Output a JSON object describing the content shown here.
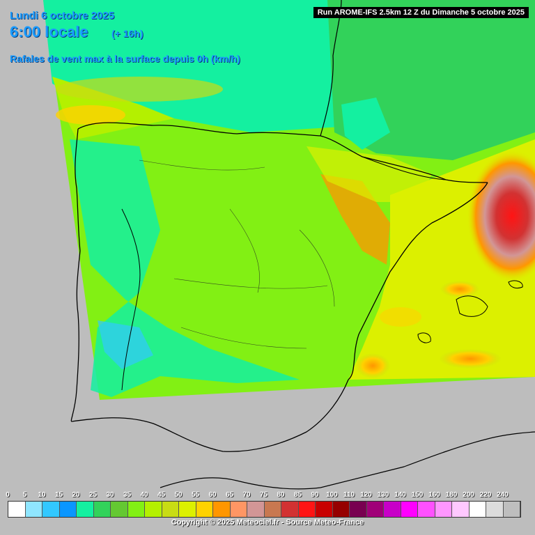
{
  "header": {
    "date": "Lundi 6 octobre 2025",
    "time": "6:00 locale",
    "lead": "(+ 16h)",
    "parameter": "Rafales de vent max à la surface depuis 0h (km/h)",
    "run": "Run AROME-IFS 2.5km 12 Z du Dimanche 5 octobre 2025"
  },
  "legend": {
    "labels": [
      "0",
      "5",
      "10",
      "15",
      "20",
      "25",
      "30",
      "35",
      "40",
      "45",
      "50",
      "55",
      "60",
      "65",
      "70",
      "75",
      "80",
      "85",
      "90",
      "100",
      "110",
      "120",
      "130",
      "140",
      "150",
      "160",
      "180",
      "200",
      "220",
      "240"
    ],
    "colors": [
      "#ffffff",
      "#8fe6ff",
      "#32c8ff",
      "#0a96ff",
      "#14f0a0",
      "#32d25a",
      "#64c832",
      "#82f014",
      "#b4f000",
      "#c8dc14",
      "#dcf000",
      "#ffd200",
      "#ff9600",
      "#ff9664",
      "#d29696",
      "#c87850",
      "#d23232",
      "#ff1414",
      "#c80000",
      "#960000",
      "#780050",
      "#a00078",
      "#c800c8",
      "#ff00ff",
      "#ff50ff",
      "#ff96ff",
      "#ffc8ff",
      "#ffffff",
      "#dcdcdc",
      "#bebebe"
    ]
  },
  "footer": {
    "copyright": "Copyright © 2025 Meteociel.fr - Source Meteo-France"
  }
}
